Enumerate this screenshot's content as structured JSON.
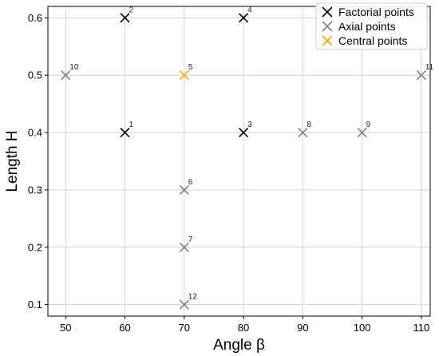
{
  "chart_data": {
    "type": "scatter",
    "xlabel": "Angle β",
    "ylabel": "Length H",
    "xlim": [
      47,
      111.5
    ],
    "ylim": [
      0.08,
      0.62
    ],
    "xticks": [
      "50",
      "60",
      "70",
      "80",
      "90",
      "100",
      "110"
    ],
    "yticks": [
      "0.1",
      "0.2",
      "0.3",
      "0.4",
      "0.5",
      "0.6"
    ],
    "grid": true,
    "legend_position": "top-right",
    "series": [
      {
        "name": "Factorial points",
        "color": "#000000",
        "marker": "x",
        "points": [
          {
            "label": "1",
            "x": 60,
            "y": 0.4
          },
          {
            "label": "2",
            "x": 60,
            "y": 0.6
          },
          {
            "label": "3",
            "x": 80,
            "y": 0.4
          },
          {
            "label": "4",
            "x": 80,
            "y": 0.6
          }
        ]
      },
      {
        "name": "Axial points",
        "color": "#808080",
        "marker": "x",
        "points": [
          {
            "label": "6",
            "x": 70,
            "y": 0.3
          },
          {
            "label": "7",
            "x": 70,
            "y": 0.2
          },
          {
            "label": "8",
            "x": 90,
            "y": 0.4
          },
          {
            "label": "9",
            "x": 100,
            "y": 0.4
          },
          {
            "label": "10",
            "x": 50,
            "y": 0.5
          },
          {
            "label": "11",
            "x": 110,
            "y": 0.5
          },
          {
            "label": "12",
            "x": 70,
            "y": 0.1
          }
        ]
      },
      {
        "name": "Central points",
        "color": "#FFA500",
        "marker": "x",
        "points": [
          {
            "label": "5",
            "x": 70,
            "y": 0.5
          }
        ]
      }
    ]
  }
}
